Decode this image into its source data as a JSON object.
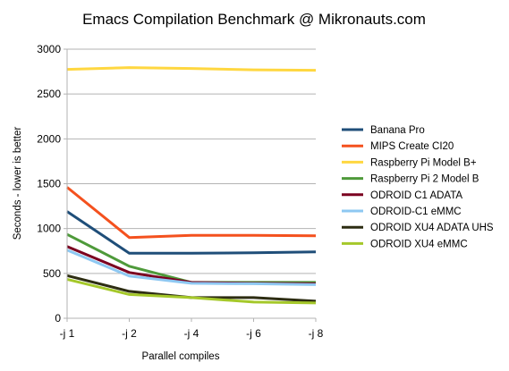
{
  "chart_data": {
    "type": "line",
    "title": "Emacs Compilation Benchmark @ Mikronauts.com",
    "xlabel": "Parallel compiles",
    "ylabel": "Seconds - lower is better",
    "categories": [
      "-j 1",
      "-j 2",
      "-j 4",
      "-j 6",
      "-j 8"
    ],
    "ylim": [
      0,
      3000
    ],
    "yticks": [
      0,
      500,
      1000,
      1500,
      2000,
      2500,
      3000
    ],
    "grid": true,
    "legend_position": "right",
    "series": [
      {
        "name": "Banana Pro",
        "color": "#1f4e79",
        "values": [
          1190,
          725,
          725,
          730,
          740
        ]
      },
      {
        "name": "MIPS Create CI20",
        "color": "#f4511e",
        "values": [
          1460,
          900,
          925,
          925,
          920
        ]
      },
      {
        "name": "Raspberry Pi Model B+",
        "color": "#ffd740",
        "values": [
          2775,
          2795,
          2785,
          2770,
          2765
        ]
      },
      {
        "name": "Raspberry Pi 2 Model B",
        "color": "#4e9a3a",
        "values": [
          935,
          580,
          400,
          400,
          400
        ]
      },
      {
        "name": "ODROID C1 ADATA",
        "color": "#7b0020",
        "values": [
          800,
          510,
          400,
          390,
          385
        ]
      },
      {
        "name": "ODROID-C1 eMMC",
        "color": "#8ec8f2",
        "values": [
          760,
          470,
          390,
          385,
          375
        ]
      },
      {
        "name": "ODROID XU4 ADATA UHS",
        "color": "#2d2d12",
        "values": [
          475,
          300,
          230,
          230,
          190
        ]
      },
      {
        "name": "ODROID XU4 eMMC",
        "color": "#a5c82a",
        "values": [
          435,
          265,
          230,
          180,
          170
        ]
      }
    ]
  }
}
